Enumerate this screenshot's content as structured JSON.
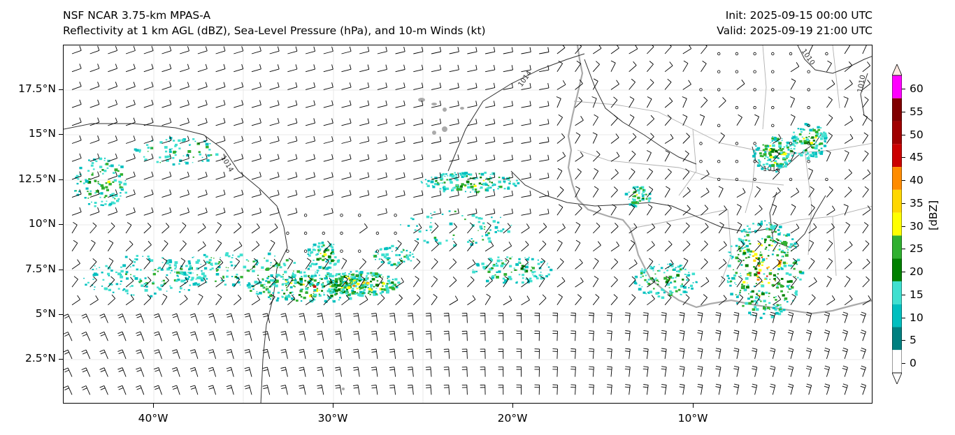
{
  "header": {
    "title_line1": "NSF NCAR 3.75-km MPAS-A",
    "title_line2": "Reflectivity at 1 km AGL (dBZ), Sea-Level Pressure (hPa), and 10-m Winds (kt)",
    "init_label": "Init: 2025-09-15 00:00 UTC",
    "valid_label": "Valid: 2025-09-19 21:00 UTC"
  },
  "axes": {
    "lat_ticks": [
      "17.5°N",
      "15°N",
      "12.5°N",
      "10°N",
      "7.5°N",
      "5°N",
      "2.5°N"
    ],
    "lon_ticks": [
      "40°W",
      "30°W",
      "20°W",
      "10°W"
    ]
  },
  "colorbar": {
    "unit": "[dBZ]",
    "ticks": [
      "60",
      "55",
      "50",
      "45",
      "40",
      "35",
      "30",
      "25",
      "20",
      "15",
      "10",
      "5",
      "0"
    ],
    "colors": [
      "#ffffff",
      "#008080",
      "#00bfbf",
      "#40e0d0",
      "#008000",
      "#30b030",
      "#ffff00",
      "#ffd700",
      "#ff8c00",
      "#cc0000",
      "#a00000",
      "#800000",
      "#ff00ff",
      "#ffe8e0"
    ]
  },
  "isobars": {
    "labels": [
      "1014",
      "1014",
      "1014",
      "1010",
      "1010",
      "1014"
    ]
  },
  "map": {
    "extent_lon": [
      -45,
      0
    ],
    "extent_lat": [
      0,
      20
    ],
    "land_outline_color": "#aaaaaa",
    "isobar_color": "#333333",
    "barb_color": "#000000"
  },
  "chart_data": {
    "type": "heatmap",
    "variables": [
      "Reflectivity at 1 km AGL (dBZ)",
      "Sea-Level Pressure (hPa)",
      "10-m Winds (kt)"
    ],
    "reflectivity_range": [
      0,
      60
    ],
    "isobar_levels": [
      1010,
      1014
    ],
    "grid": true,
    "legend": "colorbar-right"
  }
}
